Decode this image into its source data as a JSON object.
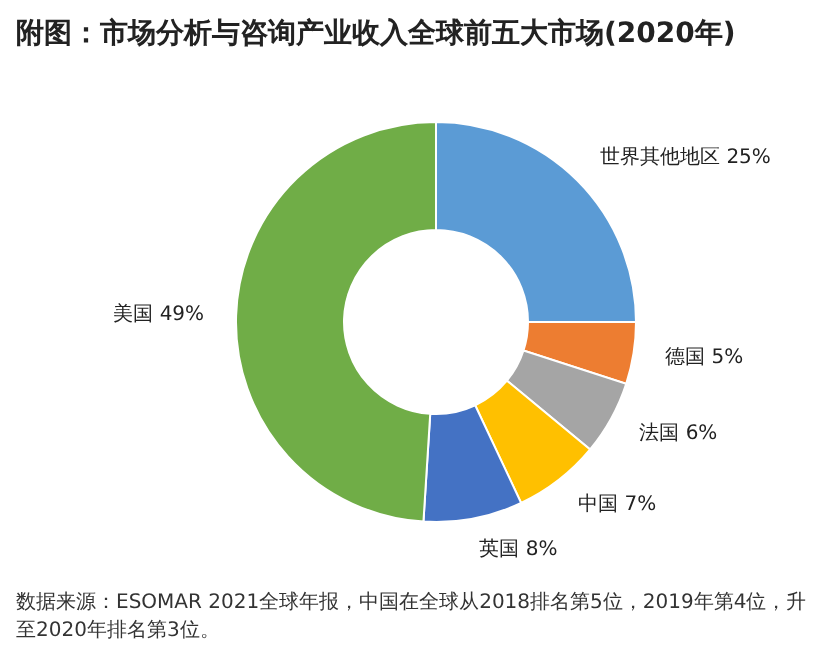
{
  "chart_data": {
    "type": "donut",
    "title": "附图：市场分析与咨询产业收入全球前五大市场(2020年)",
    "categories": [
      "世界其他地区",
      "德国",
      "法国",
      "中国",
      "英国",
      "美国"
    ],
    "values": [
      25,
      5,
      6,
      7,
      8,
      49
    ],
    "value_labels": [
      "25%",
      "5%",
      "6%",
      "7%",
      "8%",
      "49%"
    ],
    "colors": [
      "#5b9bd5",
      "#ed7d31",
      "#a5a5a5",
      "#ffc000",
      "#4472c4",
      "#70ad47"
    ],
    "legend": false,
    "annotations": [
      "数据来源：ESOMAR 2021全球年报，中国在全球从2018排名第5位，2019年第4位，升至2020年排名第3位。"
    ]
  }
}
